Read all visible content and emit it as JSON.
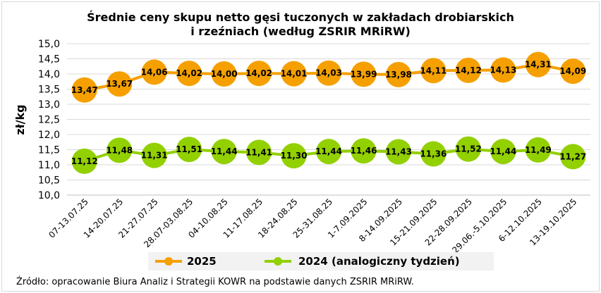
{
  "chart_data": {
    "type": "line",
    "title_lines": [
      "Średnie ceny skupu netto gęsi tuczonych w zakładach drobiarskich",
      "i rzeźniach (według ZSRIR MRiRW)"
    ],
    "ylabel": "zł/kg",
    "ylim": [
      10.0,
      15.0
    ],
    "yticks": [
      "10,0",
      "10,5",
      "11,0",
      "11,5",
      "12,0",
      "12,5",
      "13,0",
      "13,5",
      "14,0",
      "14,5",
      "15,0"
    ],
    "categories": [
      "07-13.07.25",
      "14-20.07.25",
      "21-27.07.25",
      "28.07-03.08.25",
      "04-10.08.25",
      "11-17.08.25",
      "18-24.08.25",
      "25-31.08.25",
      "1-7.09.2025",
      "8-14.09.2025",
      "15-21.09.2025",
      "22-28.09.2025",
      "29.06.-5.10.2025",
      "6-12.10.2025",
      "13-19.10.2025"
    ],
    "series": [
      {
        "name": "2025",
        "color": "#f5a000",
        "values": [
          13.47,
          13.67,
          14.06,
          14.02,
          14.0,
          14.02,
          14.01,
          14.03,
          13.99,
          13.98,
          14.11,
          14.12,
          14.13,
          14.31,
          14.09
        ],
        "labels": [
          "13,47",
          "13,67",
          "14,06",
          "14,02",
          "14,00",
          "14,02",
          "14,01",
          "14,03",
          "13,99",
          "13,98",
          "14,11",
          "14,12",
          "14,13",
          "14,31",
          "14,09"
        ]
      },
      {
        "name": "2024 (analogiczny tydzień)",
        "color": "#92d000",
        "values": [
          11.12,
          11.48,
          11.31,
          11.51,
          11.44,
          11.41,
          11.3,
          11.44,
          11.46,
          11.43,
          11.36,
          11.52,
          11.44,
          11.49,
          11.27
        ],
        "labels": [
          "11,12",
          "11,48",
          "11,31",
          "11,51",
          "11,44",
          "11,41",
          "11,30",
          "11,44",
          "11,46",
          "11,43",
          "11,36",
          "11,52",
          "11,44",
          "11,49",
          "11,27"
        ]
      }
    ],
    "grid": true,
    "legend_position": "bottom"
  },
  "source": "Źródło: opracowanie Biura Analiz i Strategii KOWR na podstawie danych ZSRIR MRiRW."
}
